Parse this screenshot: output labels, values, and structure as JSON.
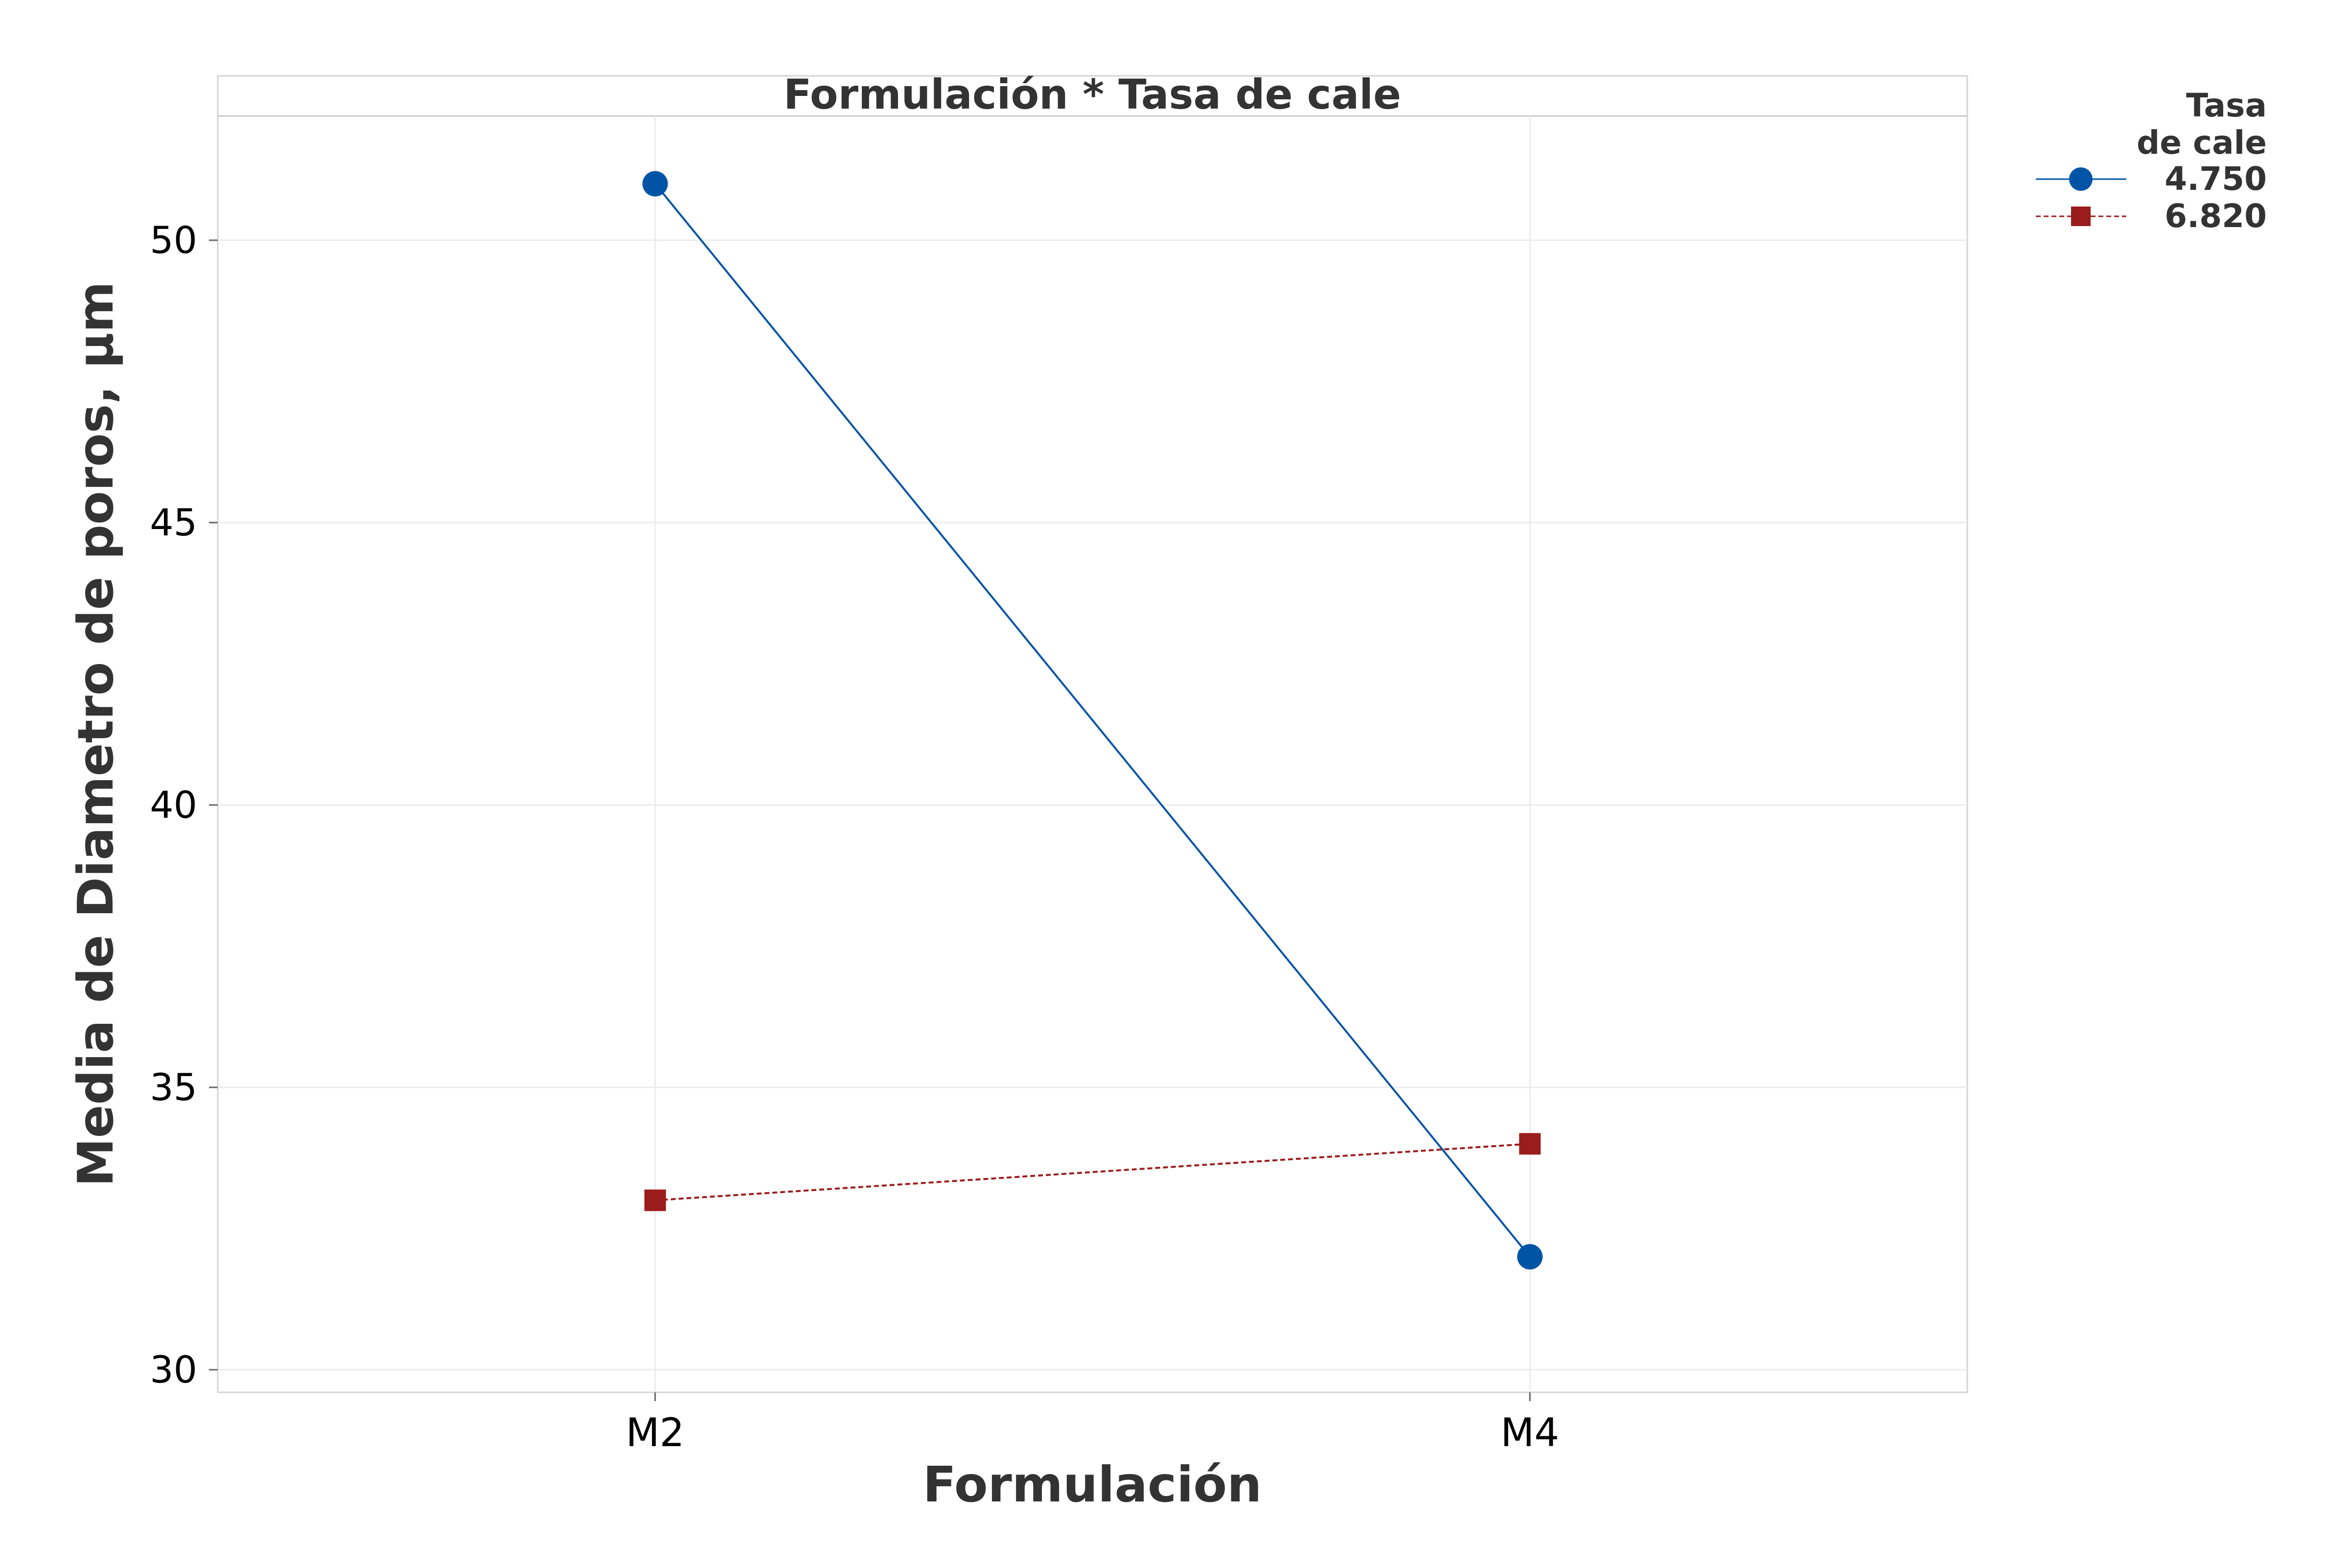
{
  "chart_data": {
    "type": "line",
    "title": "Formulación * Tasa de cale",
    "xlabel": "Formulación",
    "ylabel": "Media de Diametro de poros, µm",
    "categories": [
      "M2",
      "M4"
    ],
    "ylim": [
      29.6,
      52.2
    ],
    "yticks": [
      30,
      35,
      40,
      45,
      50
    ],
    "grid": true,
    "legend": {
      "title_lines": [
        "Tasa",
        "de cale"
      ],
      "placement": "top-right outside"
    },
    "series": [
      {
        "name": "4.750",
        "values": [
          51.0,
          32.0
        ],
        "color": "#0054a6",
        "marker": "circle",
        "line": "solid"
      },
      {
        "name": "6.820",
        "values": [
          33.0,
          34.0
        ],
        "color": "#9b1c1c",
        "marker": "square",
        "line": "dashed"
      }
    ]
  }
}
